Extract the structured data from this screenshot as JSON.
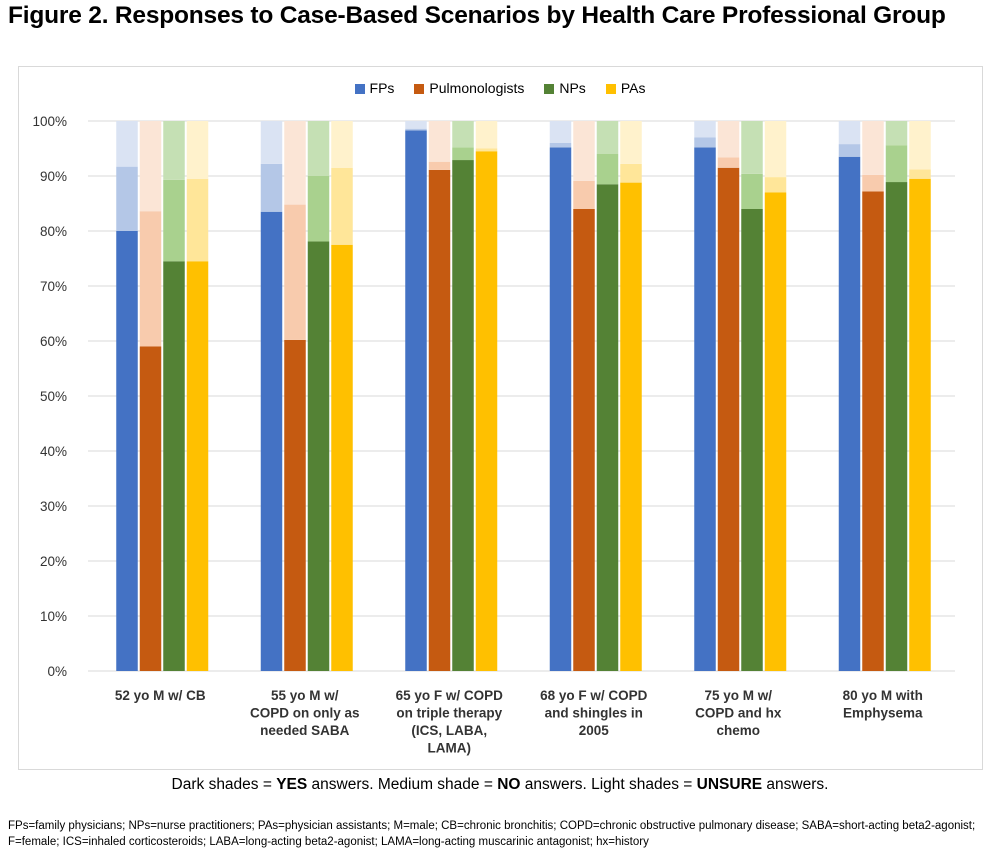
{
  "figure_title": "Figure 2. Responses to Case-Based Scenarios by Health Care Professional Group",
  "shade_note": {
    "p1": "Dark shades = ",
    "yes": "YES",
    "p2": " answers. Medium shade = ",
    "no": "NO",
    "p3": " answers. Light shades = ",
    "unsure": "UNSURE",
    "p4": " answers."
  },
  "footnote": "FPs=family physicians; NPs=nurse practitioners; PAs=physician assistants; M=male; CB=chronic bronchitis; COPD=chronic obstructive pulmonary disease; SABA=short-acting beta2-agonist; F=female; ICS=inhaled corticosteroids; LABA=long-acting beta2-agonist; LAMA=long-acting muscarinic antagonist; hx=history",
  "chart_data": {
    "type": "bar",
    "stacked": true,
    "ylim": [
      0,
      100
    ],
    "yticks": [
      "0%",
      "10%",
      "20%",
      "30%",
      "40%",
      "50%",
      "60%",
      "70%",
      "80%",
      "90%",
      "100%"
    ],
    "grid": true,
    "legend_position": "top",
    "categories": [
      [
        "52 yo M w/ CB"
      ],
      [
        "55 yo M w/",
        "COPD on only as",
        "needed SABA"
      ],
      [
        "65 yo F w/ COPD",
        "on triple therapy",
        "(ICS, LABA,",
        "LAMA)"
      ],
      [
        "68 yo F w/ COPD",
        "and shingles in",
        "2005"
      ],
      [
        "75 yo M w/",
        "COPD and hx",
        "chemo"
      ],
      [
        "80 yo M with",
        "Emphysema"
      ]
    ],
    "stack_order": [
      "YES",
      "NO",
      "UNSURE"
    ],
    "series": [
      {
        "name": "FPs",
        "colors": [
          "#4472c4",
          "#b4c7e7",
          "#dae3f3"
        ],
        "yes": [
          80.0,
          83.5,
          98.3,
          95.2,
          95.2,
          93.5
        ],
        "no": [
          11.7,
          8.7,
          0.3,
          0.8,
          1.8,
          2.3
        ],
        "unsure": [
          8.3,
          7.8,
          1.4,
          4.0,
          3.0,
          4.2
        ]
      },
      {
        "name": "Pulmonologists",
        "colors": [
          "#c55a11",
          "#f8cbad",
          "#fbe5d6"
        ],
        "yes": [
          59.0,
          60.2,
          91.1,
          84.0,
          91.5,
          87.2
        ],
        "no": [
          24.6,
          24.6,
          1.5,
          5.1,
          1.9,
          3.0
        ],
        "unsure": [
          16.4,
          15.2,
          7.4,
          10.9,
          6.6,
          9.8
        ]
      },
      {
        "name": "NPs",
        "colors": [
          "#548235",
          "#a9d18e",
          "#c5e0b4"
        ],
        "yes": [
          74.5,
          78.1,
          92.9,
          88.5,
          84.0,
          88.9
        ],
        "no": [
          14.8,
          11.9,
          2.3,
          5.5,
          6.4,
          6.7
        ],
        "unsure": [
          10.7,
          10.0,
          4.8,
          6.0,
          9.6,
          4.4
        ]
      },
      {
        "name": "PAs",
        "colors": [
          "#ffc000",
          "#ffe699",
          "#fff2cc"
        ],
        "yes": [
          74.5,
          77.5,
          94.5,
          88.8,
          87.0,
          89.5
        ],
        "no": [
          15.0,
          14.0,
          0.5,
          3.4,
          2.8,
          1.7
        ],
        "unsure": [
          10.5,
          8.5,
          5.0,
          7.8,
          10.2,
          8.8
        ]
      }
    ]
  }
}
